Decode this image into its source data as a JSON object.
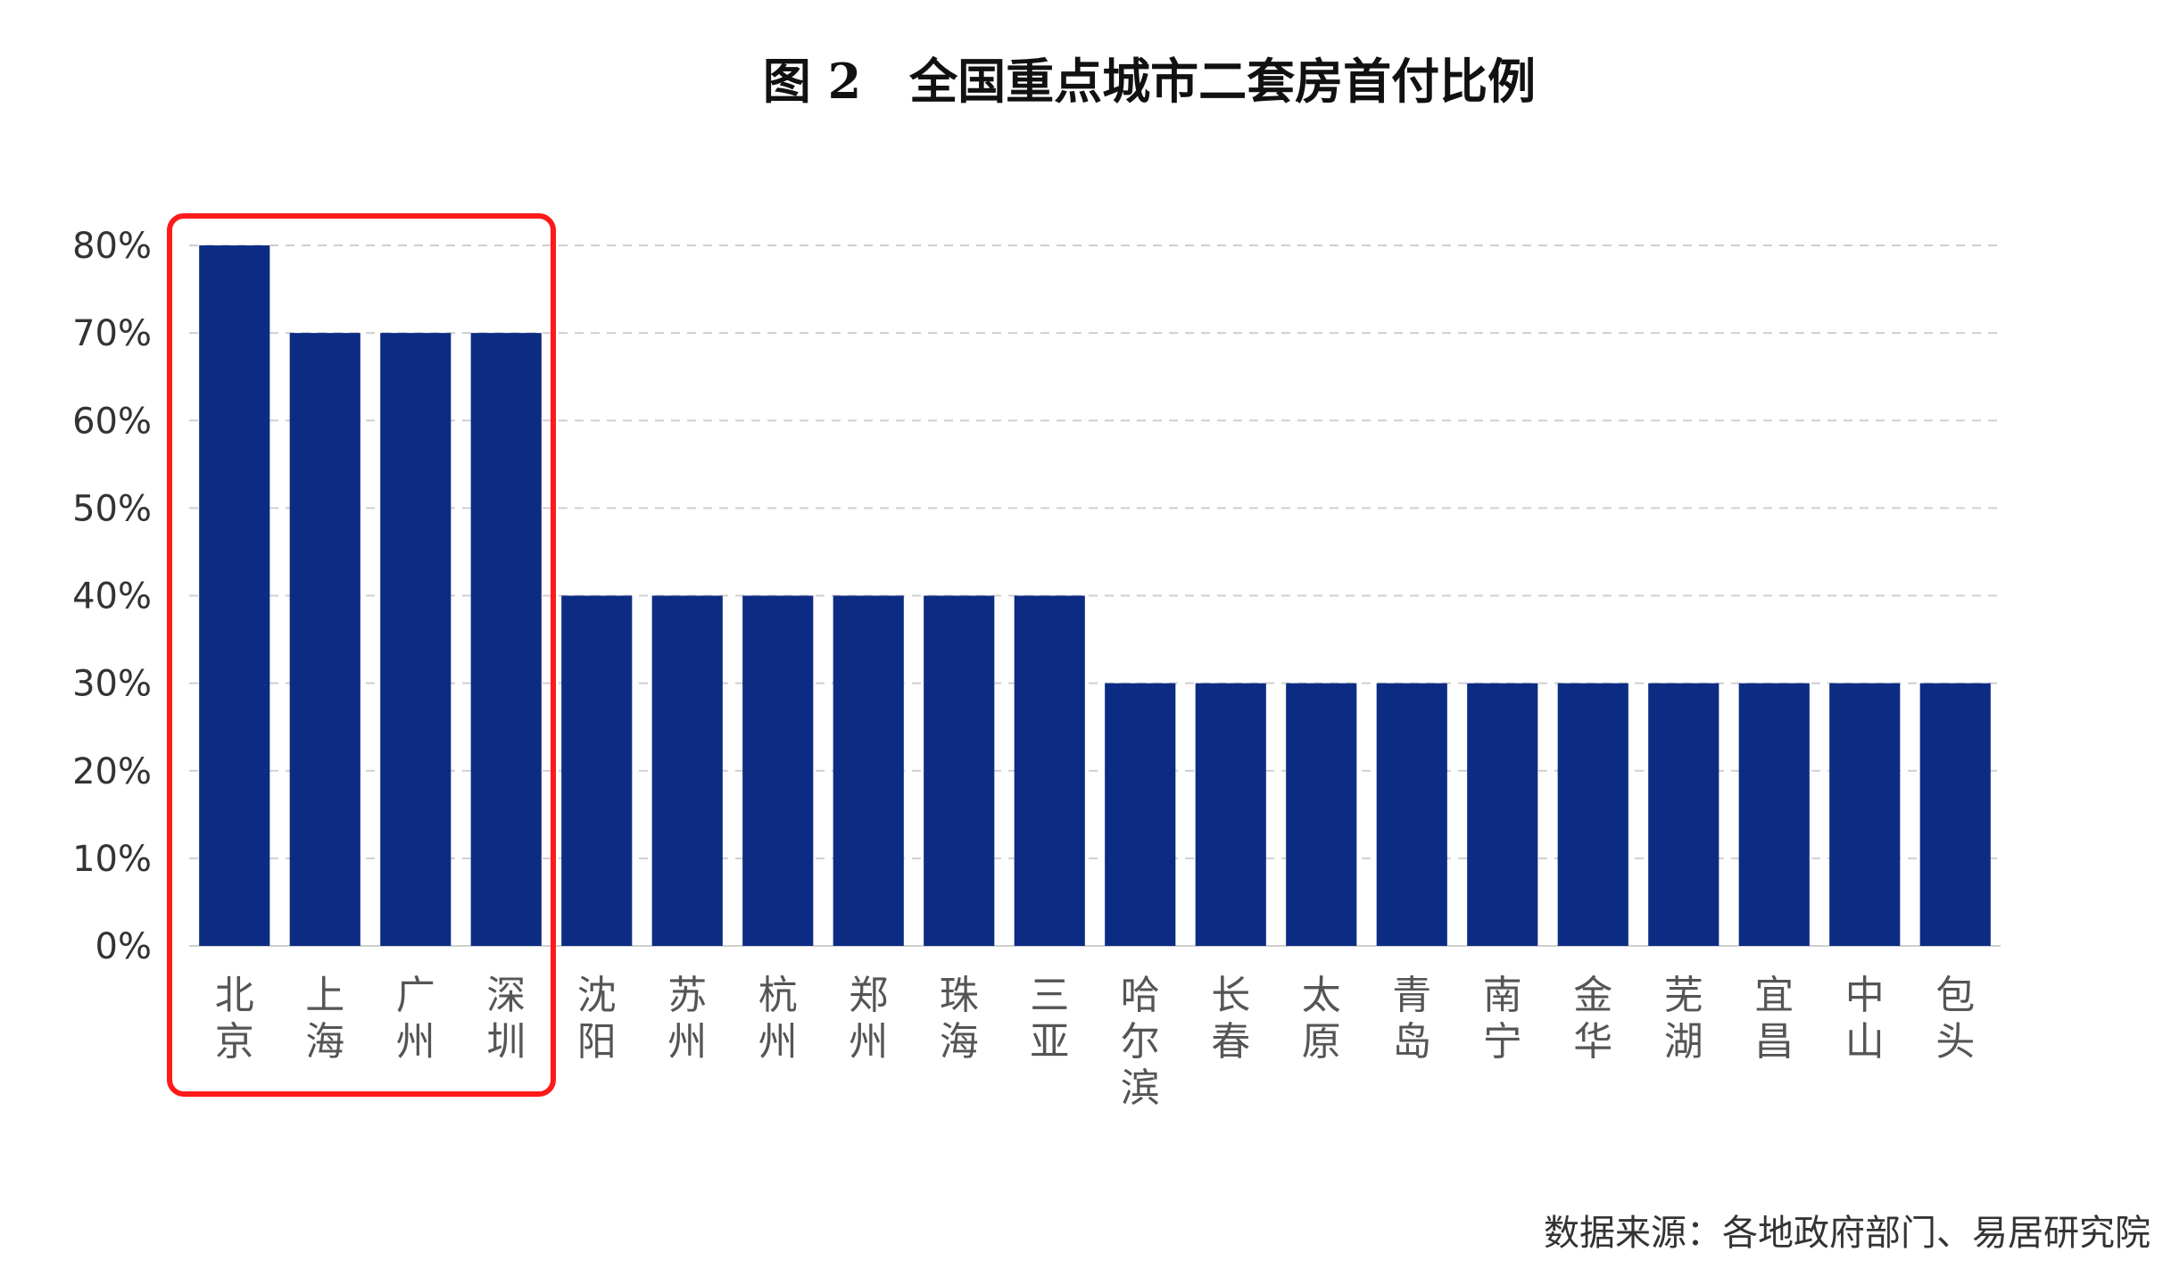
{
  "chart_data": {
    "type": "bar",
    "title": "图 2　全国重点城市二套房首付比例",
    "xlabel": "",
    "ylabel": "",
    "ylim": [
      0,
      80
    ],
    "y_ticks": [
      "0%",
      "10%",
      "20%",
      "30%",
      "40%",
      "50%",
      "60%",
      "70%",
      "80%"
    ],
    "categories": [
      "北京",
      "上海",
      "广州",
      "深圳",
      "沈阳",
      "苏州",
      "杭州",
      "郑州",
      "珠海",
      "三亚",
      "哈尔滨",
      "长春",
      "太原",
      "青岛",
      "南宁",
      "金华",
      "芜湖",
      "宜昌",
      "中山",
      "包头"
    ],
    "values": [
      80,
      70,
      70,
      70,
      40,
      40,
      40,
      40,
      40,
      40,
      30,
      30,
      30,
      30,
      30,
      30,
      30,
      30,
      30,
      30
    ],
    "unit": "%",
    "grid": true,
    "highlight": {
      "categories": [
        "北京",
        "上海",
        "广州",
        "深圳"
      ],
      "color": "#ff1a1a"
    },
    "source": "数据来源：各地政府部门、易居研究院"
  },
  "colors": {
    "bar": "#0c2c84",
    "highlight_box": "#ff1a1a",
    "gridline": "#cfcfcf"
  }
}
